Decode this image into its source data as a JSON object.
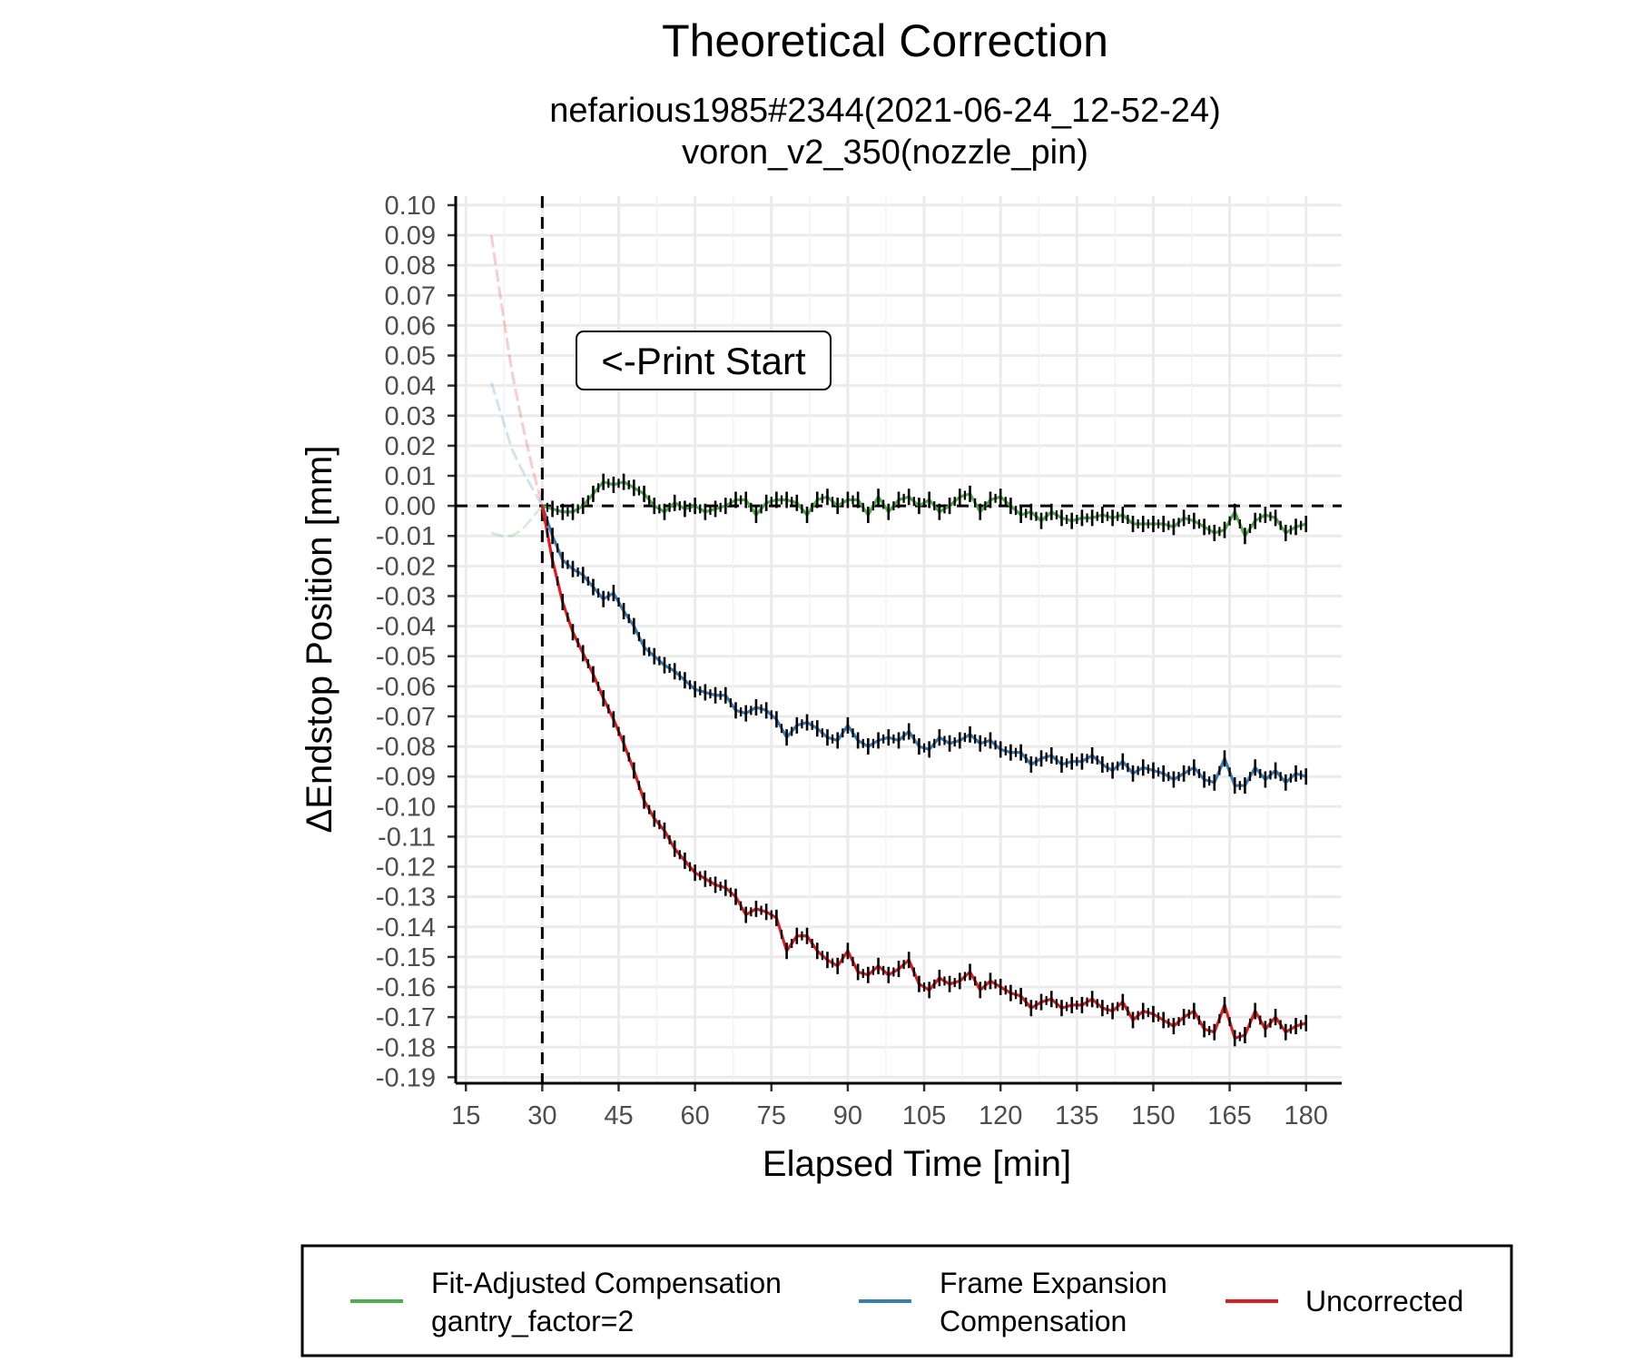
{
  "chart_data": {
    "type": "line",
    "title": "Theoretical Correction",
    "subtitle_lines": [
      "nefarious1985#2344(2021-06-24_12-52-24)",
      "voron_v2_350(nozzle_pin)"
    ],
    "xlabel": "Elapsed Time [min]",
    "ylabel": "ΔEndstop Position [mm]",
    "xlim": [
      13,
      187
    ],
    "ylim": [
      -0.192,
      0.103
    ],
    "xticks": [
      15,
      30,
      45,
      60,
      75,
      90,
      105,
      120,
      135,
      150,
      165,
      180
    ],
    "xtick_labels": [
      "15",
      "30",
      "45",
      "60",
      "75",
      "90",
      "105",
      "120",
      "135",
      "150",
      "165",
      "180"
    ],
    "yticks": [
      0.1,
      0.09,
      0.08,
      0.07,
      0.06,
      0.05,
      0.04,
      0.03,
      0.02,
      0.01,
      0.0,
      -0.01,
      -0.02,
      -0.03,
      -0.04,
      -0.05,
      -0.06,
      -0.07,
      -0.08,
      -0.09,
      -0.1,
      -0.11,
      -0.12,
      -0.13,
      -0.14,
      -0.15,
      -0.16,
      -0.17,
      -0.18,
      -0.19
    ],
    "ytick_labels": [
      "0.10",
      "0.09",
      "0.08",
      "0.07",
      "0.06",
      "0.05",
      "0.04",
      "0.03",
      "0.02",
      "0.01",
      "0.00",
      "-0.01",
      "-0.02",
      "-0.03",
      "-0.04",
      "-0.05",
      "-0.06",
      "-0.07",
      "-0.08",
      "-0.09",
      "-0.10",
      "-0.11",
      "-0.12",
      "-0.13",
      "-0.14",
      "-0.15",
      "-0.16",
      "-0.17",
      "-0.18",
      "-0.19"
    ],
    "grid": true,
    "reference_lines": {
      "vertical_x": 30,
      "horizontal_y": 0.0
    },
    "annotation": {
      "text": "<-Print Start",
      "x": 45,
      "y": 0.05
    },
    "legend_position": "bottom",
    "series": [
      {
        "name": "Fit-Adjusted Compensation",
        "legend_lines": [
          "Fit-Adjusted Compensation",
          "gantry_factor=2"
        ],
        "color": "#4daf4a",
        "pre_start": {
          "x": [
            20,
            22,
            24,
            26,
            28,
            30
          ],
          "y": [
            -0.009,
            -0.01,
            -0.01,
            -0.008,
            -0.004,
            0.0
          ]
        },
        "x": [
          30,
          32,
          34,
          36,
          38,
          40,
          42,
          44,
          46,
          48,
          50,
          52,
          54,
          56,
          58,
          60,
          62,
          64,
          66,
          68,
          70,
          72,
          74,
          76,
          78,
          80,
          82,
          84,
          86,
          88,
          90,
          92,
          94,
          96,
          98,
          100,
          102,
          104,
          106,
          108,
          110,
          112,
          114,
          116,
          118,
          120,
          122,
          124,
          126,
          128,
          130,
          132,
          134,
          136,
          138,
          140,
          142,
          144,
          146,
          148,
          150,
          152,
          154,
          156,
          158,
          160,
          162,
          164,
          166,
          168,
          170,
          172,
          174,
          176,
          178,
          180
        ],
        "y": [
          0.0,
          -0.001,
          -0.002,
          -0.002,
          0.0,
          0.004,
          0.008,
          0.007,
          0.008,
          0.006,
          0.004,
          0.0,
          -0.002,
          0.001,
          -0.001,
          0.0,
          -0.002,
          -0.001,
          0.0,
          0.002,
          0.002,
          -0.003,
          0.001,
          0.002,
          0.002,
          0.001,
          -0.003,
          0.002,
          0.003,
          0.0,
          0.002,
          0.002,
          -0.003,
          0.003,
          -0.002,
          0.002,
          0.003,
          0.0,
          0.002,
          -0.002,
          0.0,
          0.003,
          0.004,
          -0.002,
          0.002,
          0.003,
          0.0,
          -0.003,
          -0.002,
          -0.005,
          -0.002,
          -0.004,
          -0.005,
          -0.004,
          -0.004,
          -0.003,
          -0.004,
          -0.003,
          -0.006,
          -0.006,
          -0.006,
          -0.006,
          -0.007,
          -0.004,
          -0.005,
          -0.007,
          -0.009,
          -0.008,
          -0.002,
          -0.01,
          -0.005,
          -0.003,
          -0.004,
          -0.009,
          -0.007,
          -0.006
        ]
      },
      {
        "name": "Frame Expansion Compensation",
        "legend_lines": [
          "Frame Expansion",
          "Compensation"
        ],
        "color": "#377eb8",
        "pre_start": {
          "x": [
            20,
            22,
            24,
            26,
            28,
            30
          ],
          "y": [
            0.041,
            0.03,
            0.019,
            0.012,
            0.006,
            0.0
          ]
        },
        "x": [
          30,
          32,
          34,
          36,
          38,
          40,
          42,
          44,
          46,
          48,
          50,
          52,
          54,
          56,
          58,
          60,
          62,
          64,
          66,
          68,
          70,
          72,
          74,
          76,
          78,
          80,
          82,
          84,
          86,
          88,
          90,
          92,
          94,
          96,
          98,
          100,
          102,
          104,
          106,
          108,
          110,
          112,
          114,
          116,
          118,
          120,
          122,
          124,
          126,
          128,
          130,
          132,
          134,
          136,
          138,
          140,
          142,
          144,
          146,
          148,
          150,
          152,
          154,
          156,
          158,
          160,
          162,
          164,
          166,
          168,
          170,
          172,
          174,
          176,
          178,
          180
        ],
        "y": [
          0.0,
          -0.01,
          -0.018,
          -0.021,
          -0.023,
          -0.027,
          -0.031,
          -0.029,
          -0.035,
          -0.04,
          -0.047,
          -0.05,
          -0.053,
          -0.055,
          -0.058,
          -0.061,
          -0.062,
          -0.063,
          -0.063,
          -0.068,
          -0.069,
          -0.067,
          -0.068,
          -0.071,
          -0.077,
          -0.073,
          -0.072,
          -0.074,
          -0.077,
          -0.078,
          -0.073,
          -0.078,
          -0.08,
          -0.078,
          -0.077,
          -0.078,
          -0.075,
          -0.08,
          -0.081,
          -0.077,
          -0.079,
          -0.078,
          -0.076,
          -0.079,
          -0.078,
          -0.081,
          -0.082,
          -0.082,
          -0.086,
          -0.084,
          -0.083,
          -0.086,
          -0.085,
          -0.085,
          -0.083,
          -0.086,
          -0.088,
          -0.085,
          -0.089,
          -0.087,
          -0.088,
          -0.089,
          -0.091,
          -0.089,
          -0.087,
          -0.091,
          -0.092,
          -0.084,
          -0.093,
          -0.093,
          -0.087,
          -0.091,
          -0.088,
          -0.092,
          -0.089,
          -0.09
        ]
      },
      {
        "name": "Uncorrected",
        "legend_lines": [
          "Uncorrected"
        ],
        "color": "#e41a1c",
        "pre_start": {
          "x": [
            20,
            22,
            24,
            26,
            28,
            30
          ],
          "y": [
            0.09,
            0.067,
            0.045,
            0.028,
            0.013,
            0.0
          ]
        },
        "x": [
          30,
          32,
          34,
          36,
          38,
          40,
          42,
          44,
          46,
          48,
          50,
          52,
          54,
          56,
          58,
          60,
          62,
          64,
          66,
          68,
          70,
          72,
          74,
          76,
          78,
          80,
          82,
          84,
          86,
          88,
          90,
          92,
          94,
          96,
          98,
          100,
          102,
          104,
          106,
          108,
          110,
          112,
          114,
          116,
          118,
          120,
          122,
          124,
          126,
          128,
          130,
          132,
          134,
          136,
          138,
          140,
          142,
          144,
          146,
          148,
          150,
          152,
          154,
          156,
          158,
          160,
          162,
          164,
          166,
          168,
          170,
          172,
          174,
          176,
          178,
          180
        ],
        "y": [
          0.0,
          -0.018,
          -0.032,
          -0.042,
          -0.049,
          -0.056,
          -0.064,
          -0.071,
          -0.079,
          -0.088,
          -0.098,
          -0.104,
          -0.108,
          -0.114,
          -0.118,
          -0.122,
          -0.124,
          -0.126,
          -0.127,
          -0.13,
          -0.136,
          -0.134,
          -0.135,
          -0.137,
          -0.148,
          -0.143,
          -0.143,
          -0.148,
          -0.151,
          -0.153,
          -0.148,
          -0.155,
          -0.156,
          -0.153,
          -0.156,
          -0.154,
          -0.151,
          -0.159,
          -0.161,
          -0.157,
          -0.159,
          -0.158,
          -0.155,
          -0.161,
          -0.158,
          -0.16,
          -0.162,
          -0.163,
          -0.167,
          -0.165,
          -0.164,
          -0.167,
          -0.166,
          -0.166,
          -0.164,
          -0.167,
          -0.168,
          -0.165,
          -0.171,
          -0.168,
          -0.169,
          -0.171,
          -0.173,
          -0.17,
          -0.168,
          -0.174,
          -0.175,
          -0.166,
          -0.177,
          -0.176,
          -0.168,
          -0.174,
          -0.17,
          -0.175,
          -0.173,
          -0.172
        ]
      }
    ]
  }
}
